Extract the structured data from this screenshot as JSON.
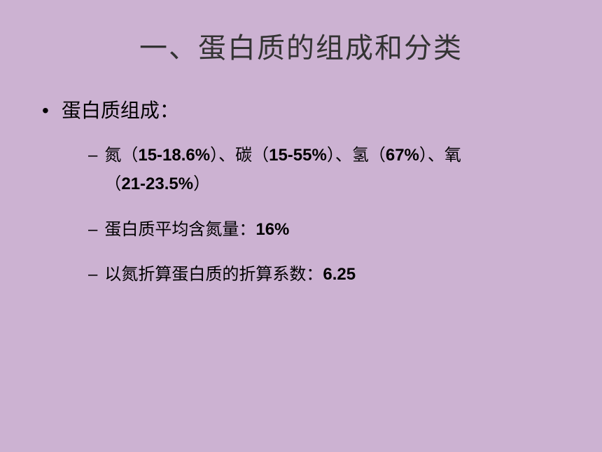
{
  "slide": {
    "background_color": "#ccb2d2",
    "title_color": "#333333",
    "text_color": "#000000",
    "title_fontsize": 40,
    "level1_fontsize": 28,
    "level2_fontsize": 24,
    "title": "一、蛋白质的组成和分类",
    "bullets": [
      {
        "marker": "•",
        "text": "蛋白质组成：",
        "children": [
          {
            "marker": "–",
            "segments": [
              {
                "t": "cn",
                "v": "氮（"
              },
              {
                "t": "num",
                "v": "15-18.6%"
              },
              {
                "t": "cn",
                "v": "）、碳（"
              },
              {
                "t": "num",
                "v": "15-55%"
              },
              {
                "t": "cn",
                "v": "）、氢（"
              },
              {
                "t": "num",
                "v": "67%"
              },
              {
                "t": "cn",
                "v": "）、氧（"
              },
              {
                "t": "num",
                "v": "21-23.5%"
              },
              {
                "t": "cn",
                "v": "）"
              }
            ]
          },
          {
            "marker": "–",
            "segments": [
              {
                "t": "cn",
                "v": "蛋白质平均含氮量："
              },
              {
                "t": "num",
                "v": "16%"
              }
            ]
          },
          {
            "marker": "–",
            "segments": [
              {
                "t": "cn",
                "v": "以氮折算蛋白质的折算系数："
              },
              {
                "t": "num",
                "v": "6.25"
              }
            ]
          }
        ]
      }
    ]
  }
}
